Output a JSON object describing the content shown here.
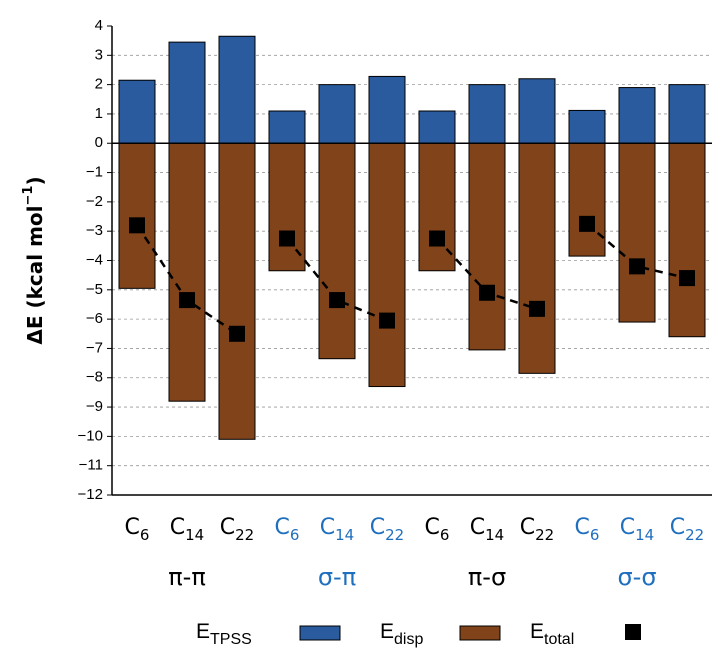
{
  "chart_data": {
    "type": "bar",
    "ylabel": "ΔE (kcal mol",
    "ylabel_sup": "−1",
    "ylabel_end": ")",
    "categories": [
      {
        "label": "C",
        "sub": "6"
      },
      {
        "label": "C",
        "sub": "14"
      },
      {
        "label": "C",
        "sub": "22"
      },
      {
        "label": "C",
        "sub": "6"
      },
      {
        "label": "C",
        "sub": "14"
      },
      {
        "label": "C",
        "sub": "22"
      },
      {
        "label": "C",
        "sub": "6"
      },
      {
        "label": "C",
        "sub": "14"
      },
      {
        "label": "C",
        "sub": "22"
      },
      {
        "label": "C",
        "sub": "6"
      },
      {
        "label": "C",
        "sub": "14"
      },
      {
        "label": "C",
        "sub": "22"
      }
    ],
    "groups": [
      {
        "label": "π-π",
        "color": "#000000"
      },
      {
        "label": "σ-π",
        "color": "#1f6fbf"
      },
      {
        "label": "π-σ",
        "color": "#000000"
      },
      {
        "label": "σ-σ",
        "color": "#1f6fbf"
      }
    ],
    "series": [
      {
        "name": "E",
        "name_sub": "TPSS",
        "color": "#2a5b9e",
        "values": [
          2.15,
          3.45,
          3.65,
          1.1,
          2.0,
          2.28,
          1.1,
          2.0,
          2.2,
          1.12,
          1.9,
          2.0
        ]
      },
      {
        "name": "E",
        "name_sub": "disp",
        "color": "#80431a",
        "values": [
          -4.95,
          -8.8,
          -10.1,
          -4.35,
          -7.35,
          -8.3,
          -4.35,
          -7.05,
          -7.85,
          -3.85,
          -6.1,
          -6.6
        ]
      },
      {
        "name": "E",
        "name_sub": "total",
        "color": "#000000",
        "values": [
          -2.8,
          -5.35,
          -6.5,
          -3.25,
          -5.35,
          -6.05,
          -3.25,
          -5.1,
          -5.65,
          -2.75,
          -4.2,
          -4.6
        ]
      }
    ],
    "ylim": [
      -12,
      4
    ],
    "yticks": [
      {
        "value": -12,
        "label": "−12"
      },
      {
        "value": -11,
        "label": "−11"
      },
      {
        "value": -10,
        "label": "−10"
      },
      {
        "value": -9,
        "label": "−9"
      },
      {
        "value": -8,
        "label": "−8"
      },
      {
        "value": -7,
        "label": "−7"
      },
      {
        "value": -6,
        "label": "−6"
      },
      {
        "value": -5,
        "label": "−5"
      },
      {
        "value": -4,
        "label": "−4"
      },
      {
        "value": -3,
        "label": "−3"
      },
      {
        "value": -2,
        "label": "−2"
      },
      {
        "value": -1,
        "label": "−1"
      },
      0,
      1,
      2,
      3,
      4
    ],
    "grid": true
  }
}
